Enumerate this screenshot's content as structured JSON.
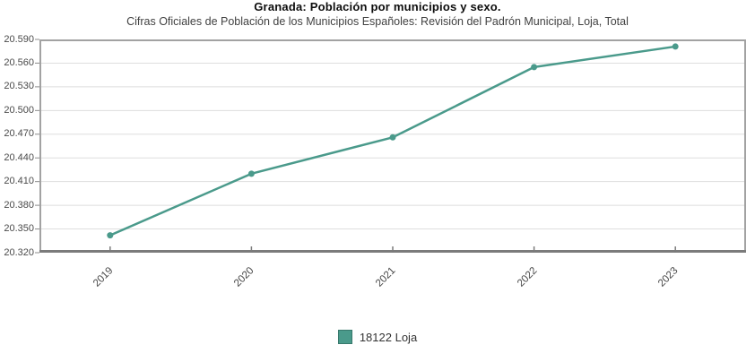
{
  "title": "Granada: Población por municipios y sexo.",
  "subtitle": "Cifras Oficiales de Población de los Municipios Españoles: Revisión del Padrón Municipal, Loja, Total",
  "legend": {
    "items": [
      {
        "label": "18122 Loja",
        "color": "#4a9a8b",
        "swatch_border": "#37796c"
      }
    ]
  },
  "colors": {
    "line": "#4a9a8b",
    "marker": "#4a9a8b",
    "grid": "#dedede",
    "plot_border": "#a2a2a2",
    "axis": "#7b7b7b",
    "tick": "#8c8c8c",
    "tick_text": "#4a4a4a"
  },
  "chart_data": {
    "type": "line",
    "title": "Granada: Población por municipios y sexo.",
    "subtitle": "Cifras Oficiales de Población de los Municipios Españoles: Revisión del Padrón Municipal, Loja, Total",
    "x": [
      "2019",
      "2020",
      "2021",
      "2022",
      "2023"
    ],
    "series": [
      {
        "name": "18122 Loja",
        "color": "#4a9a8b",
        "values": [
          20342,
          20420,
          20466,
          20555,
          20581
        ]
      }
    ],
    "ylim": [
      20320,
      20590
    ],
    "ytick_step": 30,
    "ytick_labels": [
      "20.320",
      "20.350",
      "20.380",
      "20.410",
      "20.440",
      "20.470",
      "20.500",
      "20.530",
      "20.560",
      "20.590"
    ],
    "grid": true,
    "legend_position": "bottom"
  }
}
